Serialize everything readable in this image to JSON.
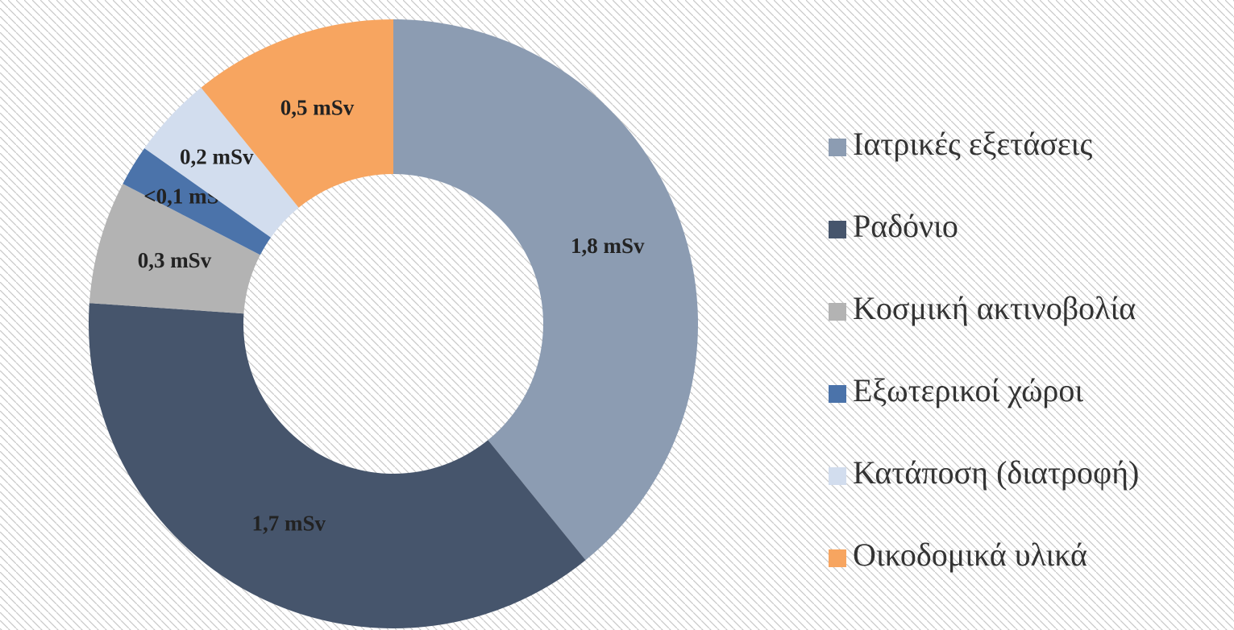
{
  "chart_data": {
    "type": "donut",
    "categories": [
      "Ιατρικές εξετάσεις",
      "Ραδόνιο",
      "Κοσμική ακτινοβολία",
      "Εξωτερικοί χώροι",
      "Κατάποση (διατροφή)",
      "Οικοδομικά υλικά"
    ],
    "values": [
      1.8,
      1.7,
      0.3,
      0.1,
      0.2,
      0.5
    ],
    "value_labels": [
      "1,8 mSv",
      "1,7 mSv",
      "0,3 mSv",
      "<0,1 mSv",
      "0,2 mSv",
      "0,5 mSv"
    ],
    "colors": [
      "#8c9cb2",
      "#46556c",
      "#b3b3b3",
      "#4b73aa",
      "#d2ddee",
      "#f7a560"
    ],
    "legend": "right"
  }
}
